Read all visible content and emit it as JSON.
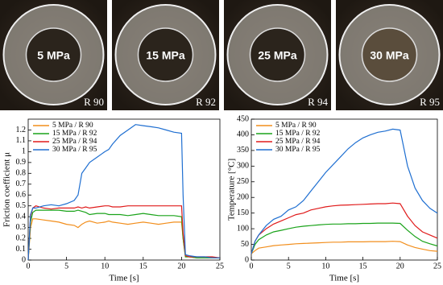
{
  "photos": [
    {
      "label": "5 MPa",
      "tag": "R 90"
    },
    {
      "label": "15 MPa",
      "tag": "R 92"
    },
    {
      "label": "25 MPa",
      "tag": "R 94"
    },
    {
      "label": "30 MPa",
      "tag": "R 95"
    }
  ],
  "chart_data": [
    {
      "type": "line",
      "xlabel": "Time [s]",
      "ylabel": "Friction coefficient μ",
      "xlim": [
        0,
        25
      ],
      "xticks": [
        0,
        5,
        10,
        15,
        20,
        25
      ],
      "ylim": [
        0,
        1.3
      ],
      "yticks": [
        0,
        0.1,
        0.2,
        0.3,
        0.4,
        0.5,
        0.6,
        0.7,
        0.8,
        0.9,
        1,
        1.1,
        1.2
      ],
      "legend": "upper-left",
      "x": [
        0,
        0.3,
        0.6,
        1,
        2,
        3,
        4,
        5,
        6,
        6.5,
        7,
        7.5,
        8,
        9,
        10,
        10.5,
        11,
        12,
        13,
        14,
        15,
        16,
        17,
        18,
        19,
        20,
        20.2,
        20.5,
        21,
        22,
        23,
        24,
        25
      ],
      "series": [
        {
          "name": "5 MPa / R 90",
          "color": "#f28e1c",
          "values": [
            0,
            0.3,
            0.38,
            0.38,
            0.37,
            0.36,
            0.35,
            0.33,
            0.32,
            0.3,
            0.33,
            0.35,
            0.36,
            0.34,
            0.35,
            0.36,
            0.35,
            0.34,
            0.33,
            0.34,
            0.35,
            0.34,
            0.33,
            0.34,
            0.35,
            0.35,
            0.2,
            0.03,
            0.03,
            0.02,
            0.02,
            0.02,
            0.02
          ]
        },
        {
          "name": "15 MPa / R 92",
          "color": "#1aa31a",
          "values": [
            0,
            0.35,
            0.44,
            0.46,
            0.46,
            0.46,
            0.46,
            0.45,
            0.45,
            0.46,
            0.45,
            0.44,
            0.42,
            0.43,
            0.43,
            0.42,
            0.42,
            0.42,
            0.41,
            0.42,
            0.43,
            0.42,
            0.41,
            0.41,
            0.41,
            0.4,
            0.2,
            0.03,
            0.03,
            0.02,
            0.02,
            0.02,
            0.02
          ]
        },
        {
          "name": "25 MPa / R 94",
          "color": "#e01b1b",
          "values": [
            0,
            0.4,
            0.48,
            0.5,
            0.48,
            0.47,
            0.48,
            0.48,
            0.48,
            0.49,
            0.48,
            0.49,
            0.48,
            0.49,
            0.5,
            0.5,
            0.49,
            0.49,
            0.5,
            0.5,
            0.5,
            0.5,
            0.5,
            0.5,
            0.5,
            0.5,
            0.25,
            0.04,
            0.03,
            0.03,
            0.03,
            0.03,
            0.02
          ]
        },
        {
          "name": "30 MPa / R 95",
          "color": "#1f6fd1",
          "values": [
            0,
            0.42,
            0.48,
            0.48,
            0.5,
            0.51,
            0.5,
            0.52,
            0.55,
            0.6,
            0.8,
            0.85,
            0.9,
            0.95,
            1.0,
            1.02,
            1.07,
            1.15,
            1.2,
            1.25,
            1.24,
            1.23,
            1.22,
            1.2,
            1.18,
            1.17,
            0.6,
            0.05,
            0.04,
            0.03,
            0.03,
            0.02,
            0.02
          ]
        }
      ]
    },
    {
      "type": "line",
      "xlabel": "Time [s]",
      "ylabel": "Temperature [°C]",
      "xlim": [
        0,
        25
      ],
      "xticks": [
        0,
        5,
        10,
        15,
        20,
        25
      ],
      "ylim": [
        0,
        450
      ],
      "yticks": [
        0,
        50,
        100,
        150,
        200,
        250,
        300,
        350,
        400,
        450
      ],
      "legend": "upper-left",
      "x": [
        0,
        0.5,
        1,
        2,
        3,
        4,
        5,
        6,
        7,
        8,
        9,
        10,
        11,
        12,
        13,
        14,
        15,
        16,
        17,
        18,
        19,
        20,
        21,
        22,
        23,
        24,
        25
      ],
      "series": [
        {
          "name": "5 MPa / R 90",
          "color": "#f28e1c",
          "values": [
            20,
            30,
            38,
            42,
            46,
            48,
            50,
            52,
            53,
            54,
            55,
            56,
            57,
            57,
            58,
            58,
            58,
            59,
            59,
            59,
            60,
            59,
            48,
            40,
            35,
            30,
            28
          ]
        },
        {
          "name": "15 MPa / R 92",
          "color": "#1aa31a",
          "values": [
            20,
            50,
            65,
            80,
            90,
            95,
            100,
            105,
            108,
            110,
            112,
            114,
            115,
            115,
            116,
            116,
            117,
            117,
            118,
            118,
            118,
            117,
            95,
            75,
            60,
            52,
            45
          ]
        },
        {
          "name": "25 MPa / R 94",
          "color": "#e01b1b",
          "values": [
            20,
            60,
            80,
            100,
            115,
            125,
            135,
            145,
            150,
            160,
            165,
            170,
            173,
            175,
            176,
            177,
            178,
            179,
            180,
            180,
            182,
            180,
            140,
            110,
            90,
            80,
            70
          ]
        },
        {
          "name": "30 MPa / R 95",
          "color": "#1f6fd1",
          "values": [
            20,
            60,
            80,
            110,
            130,
            140,
            160,
            170,
            190,
            220,
            250,
            280,
            305,
            330,
            355,
            375,
            390,
            400,
            408,
            412,
            418,
            415,
            300,
            230,
            190,
            165,
            150
          ]
        }
      ]
    }
  ]
}
